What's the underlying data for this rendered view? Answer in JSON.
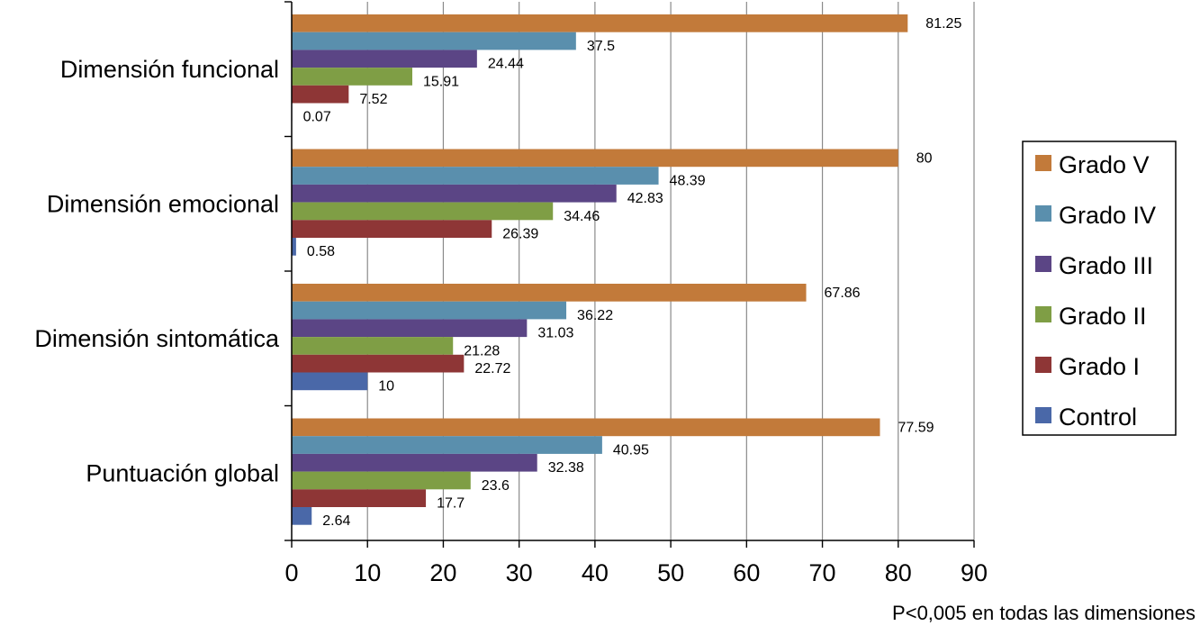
{
  "chart_data": {
    "type": "bar",
    "orientation": "horizontal",
    "categories": [
      "Dimensión funcional",
      "Dimensión emocional",
      "Dimensión sintomática",
      "Puntuación global"
    ],
    "series": [
      {
        "name": "Grado V",
        "color": "#c27a3a",
        "values": [
          81.25,
          80,
          67.86,
          77.59
        ]
      },
      {
        "name": "Grado IV",
        "color": "#5a8fad",
        "values": [
          37.5,
          48.39,
          36.22,
          40.95
        ]
      },
      {
        "name": "Grado III",
        "color": "#5b4585",
        "values": [
          24.44,
          42.83,
          31.03,
          32.38
        ]
      },
      {
        "name": "Grado II",
        "color": "#7f9e45",
        "values": [
          15.91,
          34.46,
          21.28,
          23.6
        ]
      },
      {
        "name": "Grado I",
        "color": "#8e3636",
        "values": [
          7.52,
          26.39,
          22.72,
          17.7
        ]
      },
      {
        "name": "Control",
        "color": "#4a68a8",
        "values": [
          0.07,
          0.58,
          10,
          2.64
        ]
      }
    ],
    "data_labels": [
      [
        "81.25",
        "80",
        "67.86",
        "77.59"
      ],
      [
        "37.5",
        "48.39",
        "36.22",
        "40.95"
      ],
      [
        "24.44",
        "42.83",
        "31.03",
        "32.38"
      ],
      [
        "15.91",
        "34.46",
        "21.28",
        "23.6"
      ],
      [
        "7.52",
        "26.39",
        "22.72",
        "17.7"
      ],
      [
        "0.07",
        "0.58",
        "10",
        "2.64"
      ]
    ],
    "xlim": [
      0,
      90
    ],
    "xticks": [
      "0",
      "10",
      "20",
      "30",
      "40",
      "50",
      "60",
      "70",
      "80",
      "90"
    ],
    "grid": true,
    "legend_position": "right",
    "note": "P<0,005 en todas las dimensiones"
  }
}
